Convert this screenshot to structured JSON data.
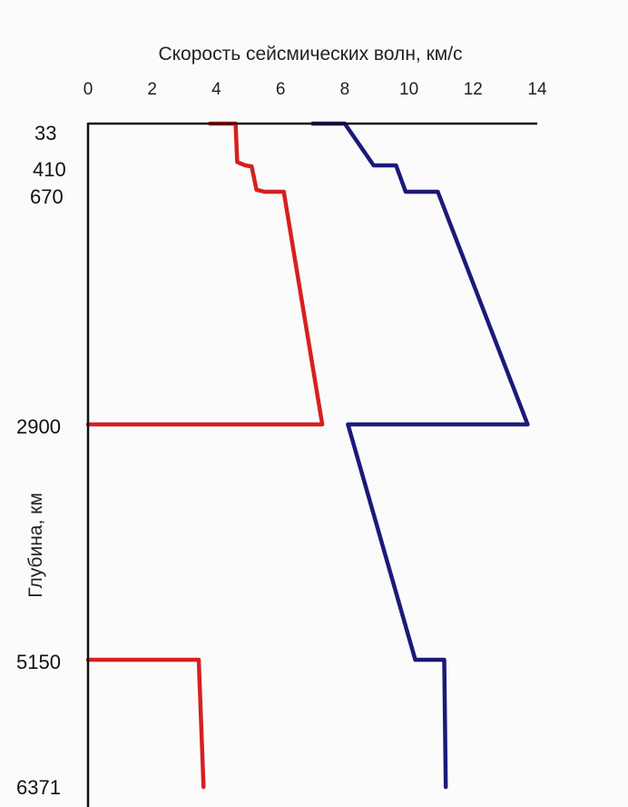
{
  "chart_data": {
    "type": "line",
    "title": "Скорость сейсмических волн, км/с",
    "xlabel": "Скорость сейсмических волн, км/с",
    "ylabel": "Глубина, км",
    "xlim": [
      0,
      14
    ],
    "x_ticks": [
      "0",
      "2",
      "4",
      "6",
      "8",
      "10",
      "12",
      "14"
    ],
    "y_ticks": [
      "33",
      "410",
      "670",
      "2900",
      "5150",
      "6371"
    ],
    "colors": {
      "series1": "#d62020",
      "series2": "#1c1a78",
      "axis": "#111111"
    },
    "series": [
      {
        "color": "#d62020",
        "segments": [
          [
            [
              3.8,
              33
            ],
            [
              4.6,
              33
            ],
            [
              4.65,
              380
            ],
            [
              4.9,
              410
            ],
            [
              5.1,
              420
            ],
            [
              5.25,
              650
            ],
            [
              5.5,
              670
            ],
            [
              6.1,
              670
            ],
            [
              7.3,
              2900
            ],
            [
              0,
              2900
            ]
          ],
          [
            [
              0,
              5150
            ],
            [
              3.45,
              5150
            ],
            [
              3.6,
              6371
            ]
          ]
        ]
      },
      {
        "color": "#1c1a78",
        "segments": [
          [
            [
              7.0,
              33
            ],
            [
              8.0,
              33
            ],
            [
              8.9,
              410
            ],
            [
              9.6,
              410
            ],
            [
              9.9,
              670
            ],
            [
              10.9,
              670
            ],
            [
              13.7,
              2900
            ],
            [
              8.1,
              2900
            ],
            [
              10.2,
              5150
            ],
            [
              11.1,
              5150
            ],
            [
              11.15,
              6371
            ]
          ]
        ]
      }
    ]
  }
}
